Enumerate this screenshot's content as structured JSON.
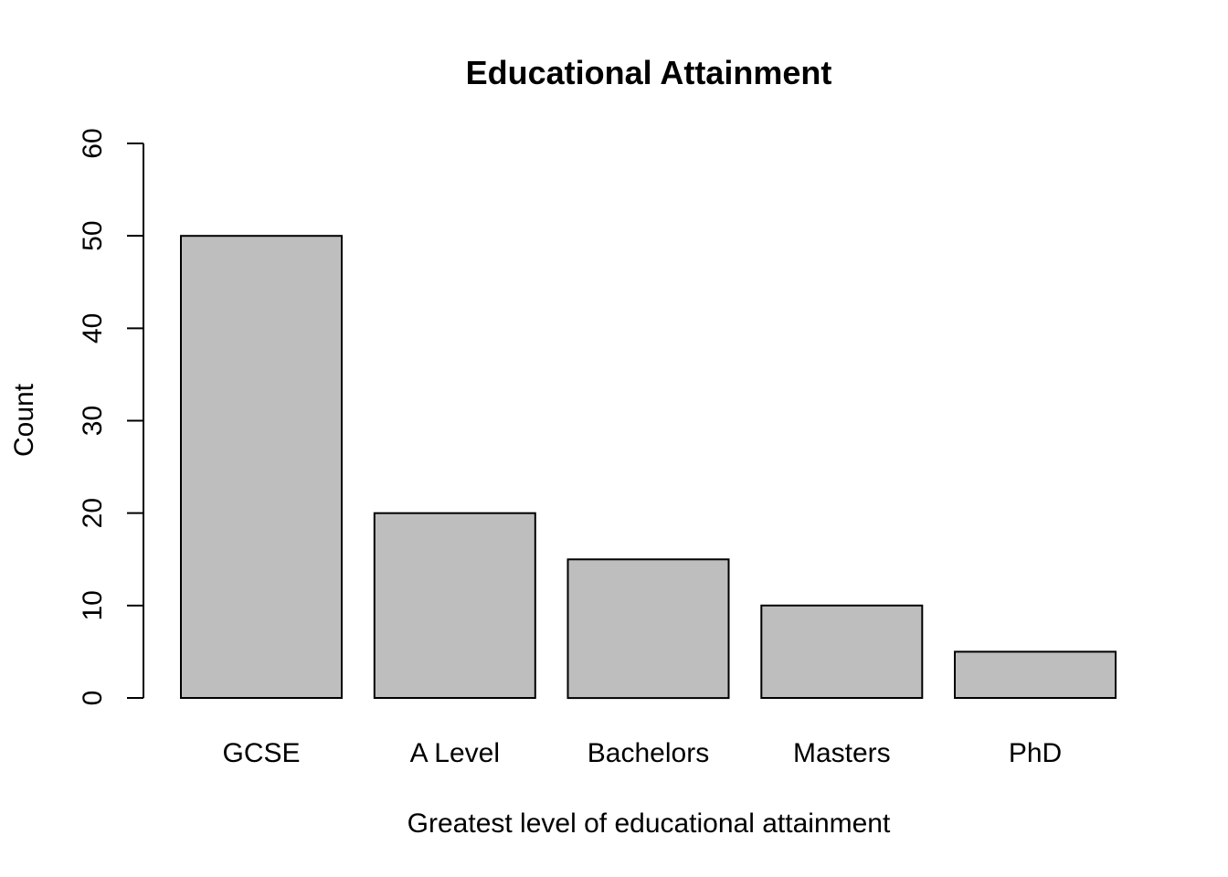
{
  "chart_data": {
    "type": "bar",
    "title": "Educational Attainment",
    "xlabel": "Greatest level of educational attainment",
    "ylabel": "Count",
    "categories": [
      "GCSE",
      "A Level",
      "Bachelors",
      "Masters",
      "PhD"
    ],
    "values": [
      50,
      20,
      15,
      10,
      5
    ],
    "ylim": [
      0,
      60
    ],
    "yticks": [
      "0",
      "10",
      "20",
      "30",
      "40",
      "50",
      "60"
    ],
    "grid": false,
    "colors": {
      "bar_fill": "#bebebe",
      "bar_stroke": "#000000",
      "axis": "#000000",
      "text": "#000000",
      "background": "#ffffff"
    }
  }
}
